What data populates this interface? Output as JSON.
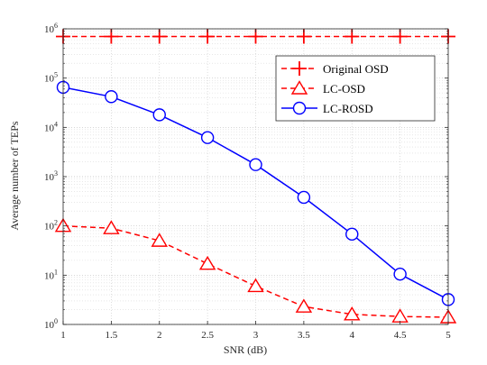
{
  "chart_data": {
    "type": "line",
    "xlabel": "SNR (dB)",
    "ylabel": "Average number of TEPs",
    "x": [
      1,
      1.5,
      2,
      2.5,
      3,
      3.5,
      4,
      4.5,
      5
    ],
    "xlim": [
      1,
      5
    ],
    "ylim": [
      1,
      1000000
    ],
    "yscale": "log",
    "x_ticks": [
      "1",
      "1.5",
      "2",
      "2.5",
      "3",
      "3.5",
      "4",
      "4.5",
      "5"
    ],
    "y_ticks": [
      {
        "base": "10",
        "exp": "0"
      },
      {
        "base": "10",
        "exp": "1"
      },
      {
        "base": "10",
        "exp": "2"
      },
      {
        "base": "10",
        "exp": "3"
      },
      {
        "base": "10",
        "exp": "4"
      },
      {
        "base": "10",
        "exp": "5"
      },
      {
        "base": "10",
        "exp": "6"
      }
    ],
    "grid": true,
    "legend_position": "top-right",
    "series": [
      {
        "name": "Original OSD",
        "color": "#ff0000",
        "linestyle": "dashed",
        "marker": "plus",
        "values": [
          700000,
          700000,
          700000,
          700000,
          700000,
          700000,
          700000,
          700000,
          700000
        ]
      },
      {
        "name": "LC-OSD",
        "color": "#ff0000",
        "linestyle": "dashed",
        "marker": "triangle",
        "values": [
          100,
          90,
          50,
          17,
          6,
          2.3,
          1.6,
          1.45,
          1.4
        ]
      },
      {
        "name": "LC-ROSD",
        "color": "#0000ff",
        "linestyle": "solid",
        "marker": "circle",
        "values": [
          65000,
          42000,
          18000,
          6200,
          1750,
          380,
          68,
          10.5,
          3.2
        ]
      }
    ]
  }
}
